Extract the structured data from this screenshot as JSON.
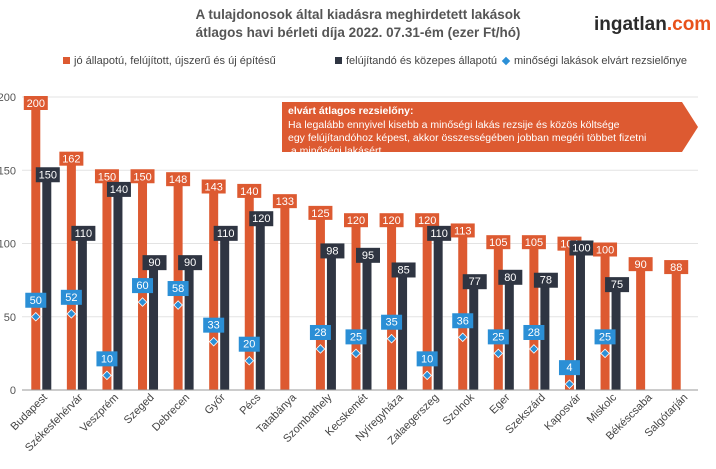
{
  "header": {
    "title_line1": "A tulajdonosok által kiadásra meghirdetett lakások",
    "title_line2": "átlagos havi bérleti díja 2022. 07.31-ém (ezer Ft/hó)",
    "brand_main": "ingatlan",
    "brand_accent": ".com"
  },
  "colors": {
    "orange": "#dd5a31",
    "dark": "#2f3542",
    "blue": "#2b8fd6",
    "grid": "#e3e3e3",
    "axis": "#9a9a9a"
  },
  "chart_data": {
    "type": "bar",
    "ylim": [
      0,
      200
    ],
    "yticks": [
      0,
      50,
      100,
      150,
      200
    ],
    "categories": [
      "Budapest",
      "Székesfehérvár",
      "Veszprém",
      "Szeged",
      "Debrecen",
      "Győr",
      "Pécs",
      "Tatabánya",
      "Szombathely",
      "Kecskemét",
      "Nyíregyháza",
      "Zalaegerszeg",
      "Szolnok",
      "Eger",
      "Szekszárd",
      "Kaposvár",
      "Miskolc",
      "Békéscsaba",
      "Salgótarján"
    ],
    "series": [
      {
        "name": "jó állapotú, felújított, újszerű és új építésű",
        "values": [
          200,
          162,
          150,
          150,
          148,
          143,
          140,
          133,
          125,
          120,
          120,
          120,
          113,
          105,
          105,
          104,
          100,
          90,
          88
        ]
      },
      {
        "name": "felújítandó és közepes állapotú",
        "values": [
          150,
          110,
          140,
          90,
          90,
          110,
          120,
          null,
          98,
          95,
          85,
          110,
          77,
          80,
          78,
          100,
          75,
          null,
          null
        ]
      },
      {
        "name": "minőségi lakások elvárt rezsielőnye",
        "values": [
          50,
          52,
          10,
          60,
          58,
          33,
          20,
          null,
          28,
          25,
          35,
          10,
          36,
          25,
          28,
          4,
          25,
          null,
          null
        ]
      }
    ]
  },
  "annotation": {
    "title": "elvárt átlagos rezsielőny:",
    "lines": [
      "Ha legalább ennyivel kisebb a minőségi lakás rezsije és közös költsége",
      "egy felújítandóhoz képest, akkor összességében jobban megéri többet fizetni",
      " a minőségi lakásért"
    ]
  }
}
